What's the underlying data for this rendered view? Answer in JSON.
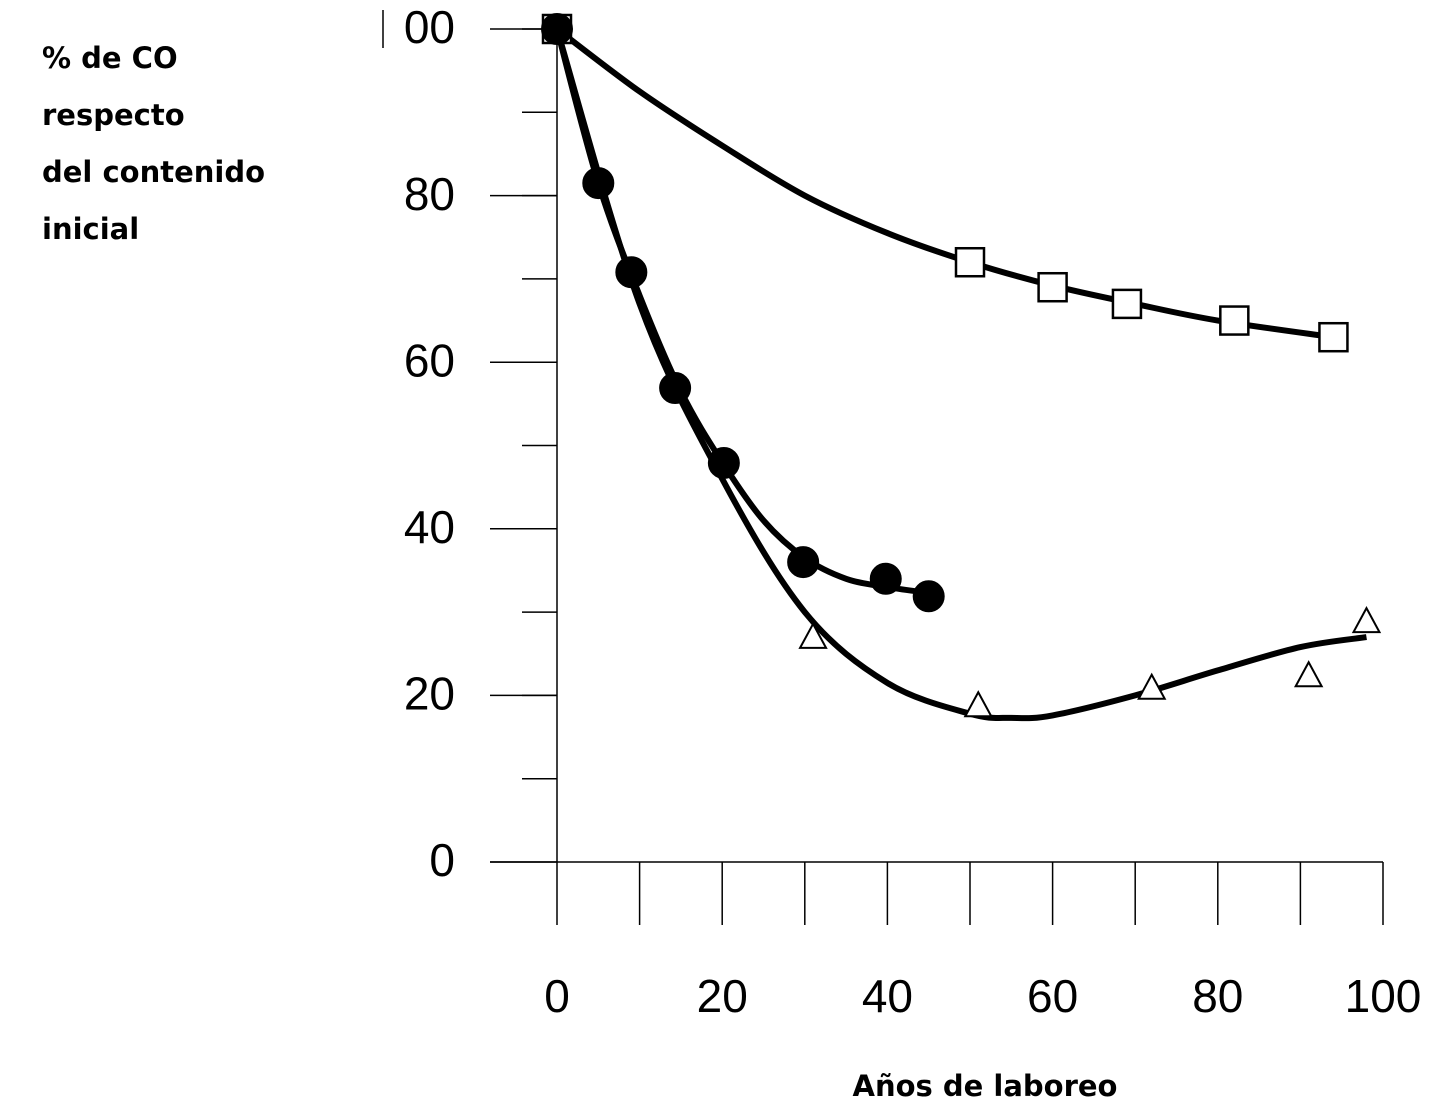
{
  "chart_data": {
    "type": "scatter",
    "ylabel": [
      "% de CO",
      "respecto",
      "del contenido",
      "inicial"
    ],
    "xlabel": "Años de laboreo",
    "xlim": [
      0,
      100
    ],
    "xticks": [
      0,
      20,
      40,
      60,
      80,
      100
    ],
    "ylim": [
      0,
      100
    ],
    "yticks": [
      0,
      20,
      40,
      60,
      80,
      {
        "value": 100,
        "label": "00"
      }
    ],
    "minor_step": 10,
    "series": [
      {
        "marker": "square",
        "color": "#000000",
        "fill": "#ffffff",
        "x": [
          0,
          50,
          60,
          69,
          82,
          94
        ],
        "values": [
          100,
          72,
          69,
          67,
          65,
          63
        ],
        "fit_x": [
          0,
          10,
          20,
          30,
          40,
          50,
          60,
          70,
          80,
          94
        ],
        "fit_values": [
          100,
          92.5,
          86,
          80,
          75.5,
          72,
          69.2,
          67,
          65,
          63
        ]
      },
      {
        "marker": "circle",
        "color": "#000000",
        "fill": "#000000",
        "x": [
          0,
          5,
          9,
          14.3,
          20.2,
          29.8,
          39.8,
          45
        ],
        "values": [
          100,
          81.5,
          70.8,
          56.9,
          47.9,
          36,
          34,
          31.9
        ],
        "fit_x": [
          0,
          5,
          10,
          15,
          20,
          25,
          30,
          35,
          40,
          45
        ],
        "fit_values": [
          100,
          81.5,
          68,
          56.5,
          48,
          41,
          36.5,
          34,
          33,
          32.3
        ]
      },
      {
        "marker": "triangle",
        "color": "#000000",
        "fill": "#ffffff",
        "x": [
          31,
          51,
          72,
          91,
          98
        ],
        "values": [
          26.9,
          18.7,
          20.8,
          22.3,
          28.8
        ],
        "fit_x": [
          0,
          10,
          20,
          30,
          40,
          50,
          55,
          60,
          70,
          80,
          90,
          98
        ],
        "fit_values": [
          100,
          67,
          46,
          30,
          21.5,
          17.8,
          17.3,
          17.6,
          20,
          23,
          25.8,
          27
        ]
      }
    ]
  }
}
